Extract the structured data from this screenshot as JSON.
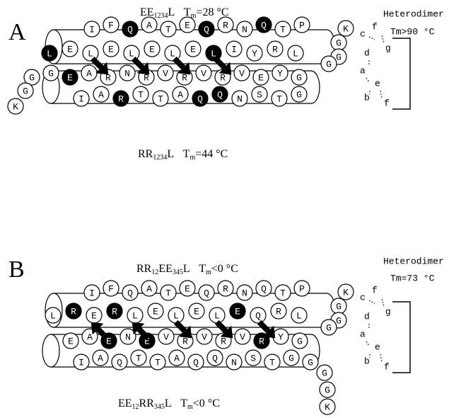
{
  "panels": [
    {
      "label": "A",
      "top": {
        "name": "EE",
        "name_sub": "1234",
        "name_end": "L",
        "t": "T",
        "t_sub": "m",
        "t_value": "=28 °C"
      },
      "bottom": {
        "name": "RR",
        "name_sub": "1234",
        "name_end": "L",
        "t": "T",
        "t_sub": "m",
        "t_value": "=44 °C"
      },
      "side": {
        "title": "Heterodimer",
        "tm": "Tm>90 °C"
      },
      "rows": [
        {
          "residues": [
            "I",
            "F",
            "Q",
            "A",
            "T",
            "E",
            "Q",
            "R",
            "N",
            "Q",
            "T",
            "P"
          ],
          "dark": [
            2,
            6,
            9
          ]
        },
        {
          "residues": [
            "L",
            "E",
            "L",
            "E",
            "L",
            "E",
            "L",
            "E",
            "L",
            "I",
            "Y",
            "R",
            "L"
          ],
          "dark": [
            0,
            8
          ]
        },
        {
          "residues": [
            "G",
            "G",
            "E",
            "A",
            "R",
            "N",
            "R",
            "V",
            "R",
            "V",
            "R",
            "V",
            "E",
            "Y",
            "G"
          ],
          "dark": [
            2
          ]
        },
        {
          "residues": [
            "I",
            "A",
            "R",
            "T",
            "T",
            "A",
            "Q",
            "Q",
            "N",
            "S",
            "T",
            "G"
          ],
          "dark": [
            2,
            6,
            7
          ]
        }
      ],
      "right_chain": [
        "K",
        "G",
        "G",
        "G"
      ],
      "left_tail": [
        "G",
        "K"
      ],
      "heptad": [
        "c",
        "f",
        "g",
        "d",
        "a",
        "e",
        "b",
        "f"
      ]
    },
    {
      "label": "B",
      "top": {
        "name": "RR",
        "name_sub": "12",
        "name_end": "EE",
        "name_sub2": "345",
        "name_end2": "L",
        "t": "T",
        "t_sub": "m",
        "t_value": "<0 °C"
      },
      "bottom": {
        "name": "EE",
        "name_sub": "12",
        "name_end": "RR",
        "name_sub2": "345",
        "name_end2": "L",
        "t": "T",
        "t_sub": "m",
        "t_value": "<0 °C"
      },
      "side": {
        "title": "Heterodimer",
        "tm": "Tm=73 °C"
      },
      "rows": [
        {
          "residues": [
            "I",
            "F",
            "Q",
            "A",
            "T",
            "E",
            "Q",
            "R",
            "N",
            "Q",
            "T",
            "P"
          ],
          "dark": []
        },
        {
          "residues": [
            "L",
            "R",
            "E",
            "R",
            "L",
            "E",
            "L",
            "E",
            "L",
            "E",
            "Q",
            "R",
            "L"
          ],
          "dark": [
            1,
            3,
            9
          ]
        },
        {
          "residues": [
            "E",
            "A",
            "E",
            "N",
            "E",
            "V",
            "R",
            "V",
            "R",
            "V",
            "R",
            "Y",
            "G"
          ],
          "dark": [
            2,
            4,
            10
          ]
        },
        {
          "residues": [
            "I",
            "A",
            "Q",
            "T",
            "T",
            "A",
            "Q",
            "Q",
            "N",
            "S",
            "T",
            "G",
            "G"
          ],
          "dark": []
        }
      ],
      "right_chain": [
        "K",
        "G",
        "G",
        "G"
      ],
      "bottom_tail": [
        "G",
        "G",
        "K"
      ],
      "heptad": [
        "c",
        "f",
        "g",
        "d",
        "a",
        "e",
        "b",
        "f"
      ]
    }
  ]
}
